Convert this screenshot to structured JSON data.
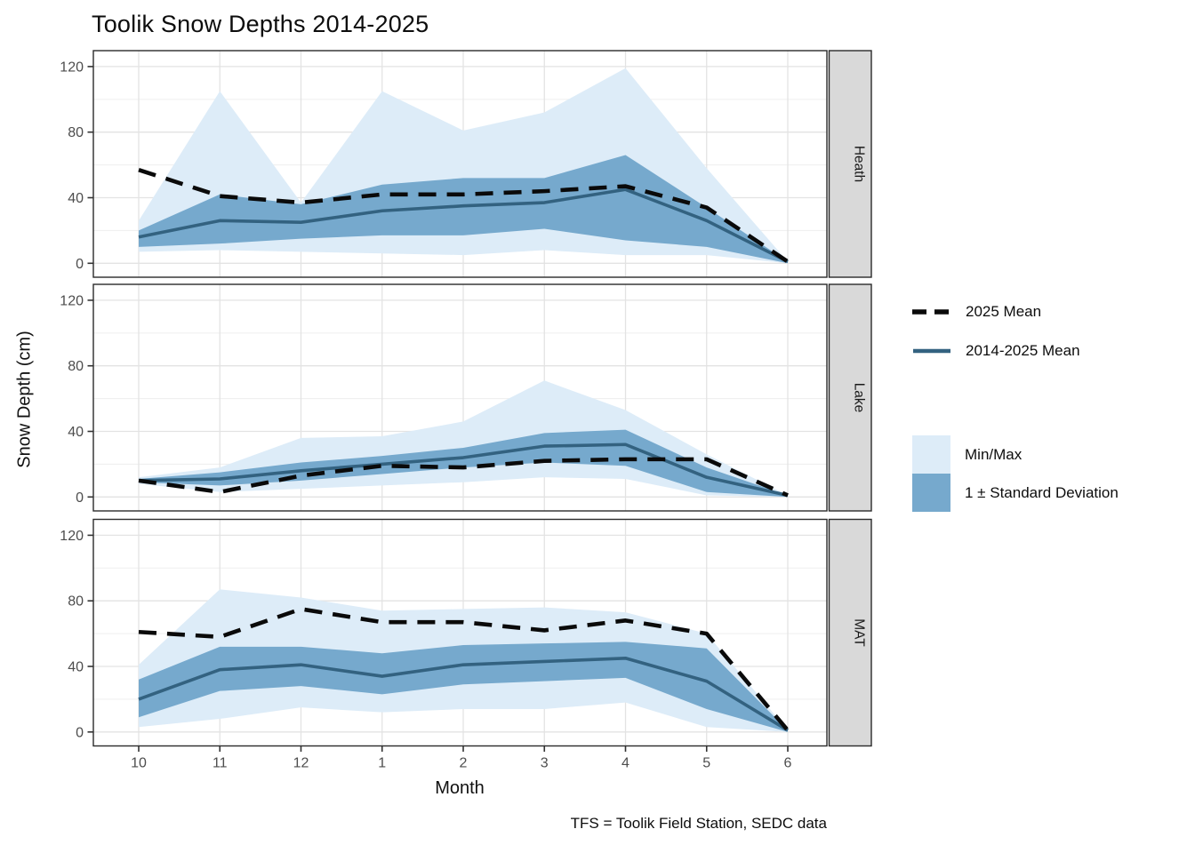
{
  "chart_data": {
    "type": "area",
    "title": "Toolik Snow Depths 2014-2025",
    "xlabel": "Month",
    "ylabel": "Snow Depth (cm)",
    "caption": "TFS = Toolik Field Station, SEDC data",
    "x_categories": [
      "10",
      "11",
      "12",
      "1",
      "2",
      "3",
      "4",
      "5",
      "6"
    ],
    "ylim": [
      0,
      120
    ],
    "y_major_ticks": [
      0,
      40,
      80,
      120
    ],
    "y_minor_ticks": [
      20,
      60,
      100
    ],
    "grid": true,
    "legend_position": "right",
    "legend": {
      "lines": [
        {
          "id": "mean2025",
          "label": "2025 Mean",
          "style": "dashed"
        },
        {
          "id": "meanAll",
          "label": "2014-2025 Mean",
          "style": "solid"
        }
      ],
      "fills": [
        {
          "id": "minmax",
          "label": "Min/Max"
        },
        {
          "id": "sd",
          "label": "1 ± Standard Deviation"
        }
      ]
    },
    "facets": [
      {
        "label": "Heath",
        "min": [
          7,
          8,
          7,
          6,
          5,
          8,
          5,
          5,
          0
        ],
        "max": [
          26,
          105,
          37,
          105,
          81,
          92,
          119,
          58,
          1
        ],
        "sd_lower": [
          10,
          12,
          15,
          17,
          17,
          21,
          14,
          10,
          0
        ],
        "sd_upper": [
          20,
          42,
          36,
          48,
          52,
          52,
          66,
          34,
          1
        ],
        "mean": [
          16,
          26,
          25,
          32,
          35,
          37,
          45,
          26,
          1
        ],
        "mean2025": [
          57,
          41,
          37,
          42,
          42,
          44,
          47,
          34,
          1
        ]
      },
      {
        "label": "Lake",
        "min": [
          8,
          3,
          5,
          7,
          9,
          12,
          11,
          1,
          0
        ],
        "max": [
          12,
          18,
          36,
          37,
          46,
          71,
          53,
          26,
          1
        ],
        "sd_lower": [
          9,
          7,
          10,
          14,
          18,
          21,
          19,
          3,
          0
        ],
        "sd_upper": [
          11,
          15,
          21,
          25,
          30,
          39,
          41,
          18,
          1
        ],
        "mean": [
          10,
          11,
          16,
          20,
          24,
          31,
          32,
          12,
          1
        ],
        "mean2025": [
          10,
          3,
          13,
          19,
          18,
          22,
          23,
          23,
          1
        ]
      },
      {
        "label": "MAT",
        "min": [
          3,
          8,
          15,
          12,
          14,
          14,
          18,
          3,
          0
        ],
        "max": [
          41,
          87,
          82,
          74,
          75,
          76,
          73,
          60,
          1
        ],
        "sd_lower": [
          9,
          25,
          28,
          23,
          29,
          31,
          33,
          14,
          0
        ],
        "sd_upper": [
          32,
          52,
          52,
          48,
          53,
          54,
          55,
          51,
          1
        ],
        "mean": [
          20,
          38,
          41,
          34,
          41,
          43,
          45,
          31,
          1
        ],
        "mean2025": [
          61,
          58,
          75,
          67,
          67,
          62,
          68,
          60,
          1
        ]
      }
    ]
  },
  "colors": {
    "ribbon_minmax": "#DDECF8",
    "ribbon_sd": "#76A9CD",
    "mean_line": "#336280",
    "dashed_line": "#0a0a0a",
    "strip_bg": "#D9D9D9",
    "strip_text": "#1a1a1a",
    "grid_major": "#E3E3E3",
    "grid_minor": "#F0F0F0",
    "panel_border": "#2B2B2B",
    "tick_mark": "#333333",
    "tick_text": "#4D4D4D"
  }
}
